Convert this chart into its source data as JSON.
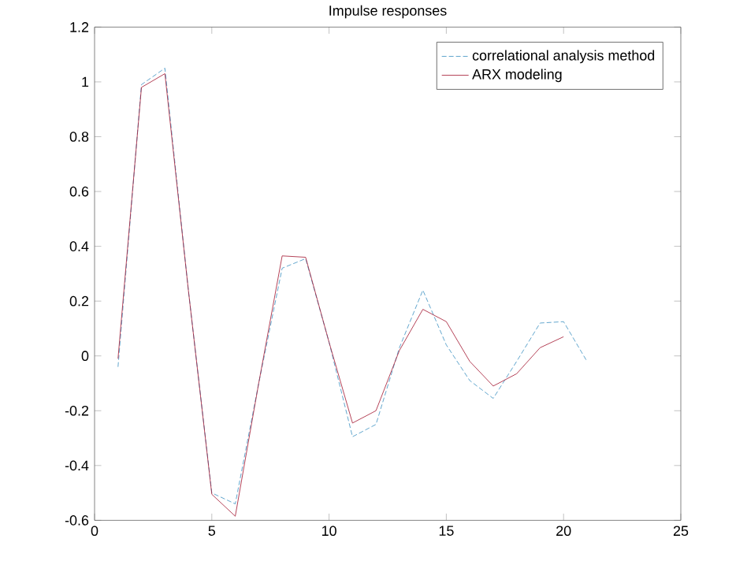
{
  "chart_data": {
    "type": "line",
    "title": "Impulse responses",
    "xlim": [
      0,
      25
    ],
    "xticks": [
      0,
      5,
      10,
      15,
      20,
      25
    ],
    "ylim": [
      -0.6,
      1.2
    ],
    "yticks": [
      -0.6,
      -0.4,
      -0.2,
      0,
      0.2,
      0.4,
      0.6,
      0.8,
      1,
      1.2
    ],
    "grid": false,
    "legend": "top right",
    "series": [
      {
        "name": "correlational analysis method",
        "color": "#3a8fc0",
        "line_style": "dashed",
        "x": [
          1,
          2,
          3,
          4,
          5,
          6,
          7,
          8,
          9,
          10,
          11,
          12,
          13,
          14,
          15,
          16,
          17,
          18,
          19,
          20,
          21
        ],
        "values": [
          -0.04,
          0.99,
          1.05,
          0.24,
          -0.5,
          -0.54,
          -0.1,
          0.32,
          0.355,
          0.05,
          -0.295,
          -0.25,
          0.03,
          0.24,
          0.04,
          -0.09,
          -0.155,
          -0.02,
          0.12,
          0.125,
          -0.02
        ]
      },
      {
        "name": "ARX modeling",
        "color": "#a2142f",
        "line_style": "solid",
        "x": [
          1,
          2,
          3,
          4,
          5,
          6,
          7,
          8,
          9,
          10,
          11,
          12,
          13,
          14,
          15,
          16,
          17,
          18,
          19,
          20
        ],
        "values": [
          -0.01,
          0.98,
          1.03,
          0.24,
          -0.505,
          -0.585,
          -0.1,
          0.365,
          0.36,
          0.05,
          -0.245,
          -0.2,
          0.02,
          0.17,
          0.125,
          -0.02,
          -0.11,
          -0.065,
          0.03,
          0.07
        ]
      }
    ]
  }
}
